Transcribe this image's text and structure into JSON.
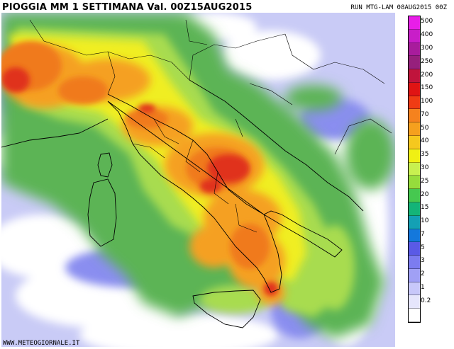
{
  "header": {
    "title": "PIOGGIA MM 1 SETTIMANA Val. 00Z15AUG2015",
    "run_info": "RUN MTG-LAM 08AUG2015 00Z"
  },
  "footer": {
    "watermark": "WWW.METEOGIORNALE.IT"
  },
  "colors": {
    "sea_no_rain": "#ffffff",
    "light_rain": "#b8bcf5",
    "moderate_rain": "#58a84c",
    "heavy_rain": "#f39b1e",
    "very_heavy_rain": "#e03318"
  },
  "legend": {
    "items": [
      {
        "label": "500",
        "color": "#e81ee8"
      },
      {
        "label": "400",
        "color": "#c81ec8"
      },
      {
        "label": "300",
        "color": "#a81c9c"
      },
      {
        "label": "250",
        "color": "#96207c"
      },
      {
        "label": "200",
        "color": "#c0143c"
      },
      {
        "label": "150",
        "color": "#e01414"
      },
      {
        "label": "100",
        "color": "#f03c14"
      },
      {
        "label": "70",
        "color": "#f5821e"
      },
      {
        "label": "50",
        "color": "#f5a01e"
      },
      {
        "label": "40",
        "color": "#f5c81e"
      },
      {
        "label": "35",
        "color": "#f0f014"
      },
      {
        "label": "30",
        "color": "#c8f050"
      },
      {
        "label": "25",
        "color": "#96dc3c"
      },
      {
        "label": "20",
        "color": "#46c850"
      },
      {
        "label": "15",
        "color": "#14b478"
      },
      {
        "label": "10",
        "color": "#14a0b4"
      },
      {
        "label": "7",
        "color": "#1478dc"
      },
      {
        "label": "5",
        "color": "#5a5ae6"
      },
      {
        "label": "3",
        "color": "#7c7cf0"
      },
      {
        "label": "2",
        "color": "#a0a0f5"
      },
      {
        "label": "1",
        "color": "#c8c8fa"
      },
      {
        "label": "0.2",
        "color": "#e6e6fc"
      },
      {
        "label": "",
        "color": "#ffffff"
      }
    ]
  }
}
